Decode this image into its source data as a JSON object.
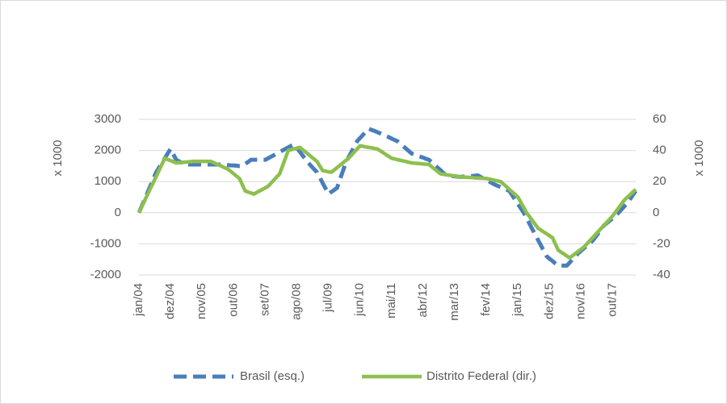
{
  "chart_data": {
    "type": "line",
    "y_label": "x 1000",
    "y2_label": "x 1000",
    "ylim": [
      -2000,
      3000
    ],
    "yticks": [
      -2000,
      -1000,
      0,
      1000,
      2000,
      3000
    ],
    "y2lim": [
      -40,
      60
    ],
    "y2ticks": [
      -40,
      -20,
      0,
      20,
      40,
      60
    ],
    "grid": true,
    "legend": "bottom",
    "categories": [
      "jan/04",
      null,
      null,
      null,
      null,
      null,
      null,
      null,
      null,
      null,
      null,
      "dez/04",
      null,
      null,
      null,
      null,
      null,
      null,
      null,
      null,
      null,
      null,
      "nov/05",
      null,
      null,
      null,
      null,
      null,
      null,
      null,
      null,
      null,
      null,
      "out/06",
      null,
      null,
      null,
      null,
      null,
      null,
      null,
      null,
      null,
      null,
      "set/07",
      null,
      null,
      null,
      null,
      null,
      null,
      null,
      null,
      null,
      null,
      "ago/08",
      null,
      null,
      null,
      null,
      null,
      null,
      null,
      null,
      null,
      null,
      "jul/09",
      null,
      null,
      null,
      null,
      null,
      null,
      null,
      null,
      null,
      null,
      "jun/10",
      null,
      null,
      null,
      null,
      null,
      null,
      null,
      null,
      null,
      null,
      "mai/11",
      null,
      null,
      null,
      null,
      null,
      null,
      null,
      null,
      null,
      null,
      "abr/12",
      null,
      null,
      null,
      null,
      null,
      null,
      null,
      null,
      null,
      null,
      "mar/13",
      null,
      null,
      null,
      null,
      null,
      null,
      null,
      null,
      null,
      null,
      "fev/14",
      null,
      null,
      null,
      null,
      null,
      null,
      null,
      null,
      null,
      null,
      "jan/15",
      null,
      null,
      null,
      null,
      null,
      null,
      null,
      null,
      null,
      null,
      "dez/15",
      null,
      null,
      null,
      null,
      null,
      null,
      null,
      null,
      null,
      null,
      "nov/16",
      null,
      null,
      null,
      null,
      null,
      null,
      null,
      null,
      null,
      null,
      "out/17",
      null,
      null,
      null,
      null,
      null,
      null,
      null,
      null
    ],
    "series": [
      {
        "name": "Brasil (esq.)",
        "color": "#4a7ebb",
        "line_style": "dashed",
        "values": [
          0,
          217,
          433,
          650,
          867,
          1083,
          1300,
          1450,
          1600,
          1750,
          1900,
          2050,
          1875,
          1700,
          1650,
          1600,
          1550,
          1550,
          1550,
          1550,
          1550,
          1550,
          1550,
          1550,
          1550,
          1550,
          1550,
          1550,
          1550,
          1550,
          1540,
          1530,
          1520,
          1520,
          1510,
          1500,
          1500,
          1570,
          1630,
          1700,
          1700,
          1700,
          1700,
          1700,
          1700,
          1750,
          1800,
          1850,
          1900,
          1950,
          2000,
          2050,
          2100,
          2150,
          2200,
          2080,
          1960,
          1840,
          1720,
          1600,
          1500,
          1400,
          1300,
          1130,
          950,
          780,
          600,
          670,
          730,
          800,
          1070,
          1330,
          1600,
          1780,
          1950,
          2130,
          2300,
          2400,
          2500,
          2600,
          2700,
          2660,
          2630,
          2590,
          2550,
          2510,
          2470,
          2430,
          2380,
          2340,
          2300,
          2220,
          2140,
          2060,
          1980,
          1900,
          1870,
          1830,
          1800,
          1770,
          1730,
          1700,
          1620,
          1530,
          1450,
          1370,
          1280,
          1200,
          1190,
          1180,
          1170,
          1160,
          1150,
          1160,
          1170,
          1180,
          1180,
          1190,
          1200,
          1150,
          1100,
          1050,
          1000,
          950,
          900,
          860,
          820,
          780,
          740,
          700,
          560,
          420,
          280,
          140,
          0,
          -180,
          -350,
          -530,
          -700,
          -880,
          -1050,
          -1230,
          -1400,
          -1480,
          -1550,
          -1630,
          -1700,
          -1700,
          -1700,
          -1700,
          -1600,
          -1500,
          -1400,
          -1300,
          -1220,
          -1140,
          -1060,
          -980,
          -900,
          -780,
          -650,
          -530,
          -400,
          -330,
          -250,
          -180,
          -100,
          0,
          100,
          200,
          300,
          430,
          570,
          700
        ]
      },
      {
        "name": "Distrito Federal (dir.)",
        "color": "#8dbf4f",
        "line_style": "solid",
        "axis": "y2",
        "values": [
          0,
          3.9,
          7.8,
          11.7,
          15.6,
          19.4,
          23.3,
          27.2,
          31.1,
          35,
          34.2,
          33.5,
          32.8,
          32,
          32.2,
          32.3,
          32.5,
          32.7,
          32.8,
          33,
          33,
          33,
          33,
          33,
          33,
          33,
          32.2,
          31.3,
          30.5,
          29.7,
          28.8,
          28,
          26.5,
          25,
          23.5,
          22,
          18,
          14,
          13.3,
          12.7,
          12,
          13,
          14,
          15,
          16,
          17,
          19,
          21,
          23,
          25,
          30,
          35,
          40,
          40.5,
          41,
          41.5,
          42,
          40.5,
          39,
          37.5,
          36,
          34.5,
          33,
          30,
          27,
          26.7,
          26.3,
          26,
          27.5,
          29,
          30.5,
          32,
          33.5,
          35,
          37,
          39,
          41,
          43,
          42.7,
          42.3,
          42,
          41.7,
          41.3,
          41,
          39.8,
          38.6,
          37.4,
          36.2,
          35,
          34.6,
          34.1,
          33.7,
          33.3,
          32.9,
          32.4,
          32,
          31.8,
          31.7,
          31.5,
          31.3,
          31.2,
          31,
          29.5,
          28,
          26.5,
          25,
          24.7,
          24.4,
          24.1,
          23.9,
          23.6,
          23.3,
          23,
          22.9,
          22.8,
          22.7,
          22.6,
          22.4,
          22.3,
          22.2,
          22.1,
          22,
          21.6,
          21.2,
          20.8,
          20.4,
          20,
          18.3,
          16.7,
          15,
          13.3,
          11.7,
          10,
          6.7,
          3.3,
          0,
          -2.5,
          -5,
          -7.5,
          -10,
          -11.2,
          -12.4,
          -13.6,
          -14.8,
          -16,
          -20,
          -24,
          -25.3,
          -26.5,
          -27.8,
          -29,
          -27.6,
          -26.2,
          -24.8,
          -23.4,
          -22,
          -20,
          -18,
          -16,
          -14,
          -12,
          -10,
          -8,
          -6,
          -4,
          -2,
          0.5,
          3,
          5.5,
          8,
          9.8,
          11.5,
          13.3,
          15
        ]
      }
    ]
  }
}
